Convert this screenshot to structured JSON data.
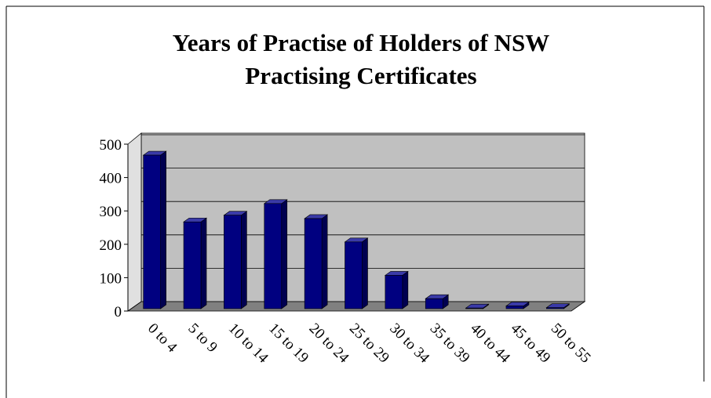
{
  "chart_data": {
    "type": "bar3d",
    "title": "Years of Practise of Holders of NSW Practising Certificates",
    "categories": [
      "0 to 4",
      "5 to 9",
      "10 to 14",
      "15 to 19",
      "20 to 24",
      "25 to 29",
      "30 to 34",
      "35 to 39",
      "40 to 44",
      "45 to 49",
      "50 to 55"
    ],
    "values": [
      460,
      260,
      280,
      315,
      270,
      200,
      100,
      30,
      2,
      8,
      3
    ],
    "color": "#000080",
    "ylim": [
      0,
      500
    ],
    "yticks": [
      0,
      100,
      200,
      300,
      400,
      500
    ],
    "grid": true
  }
}
